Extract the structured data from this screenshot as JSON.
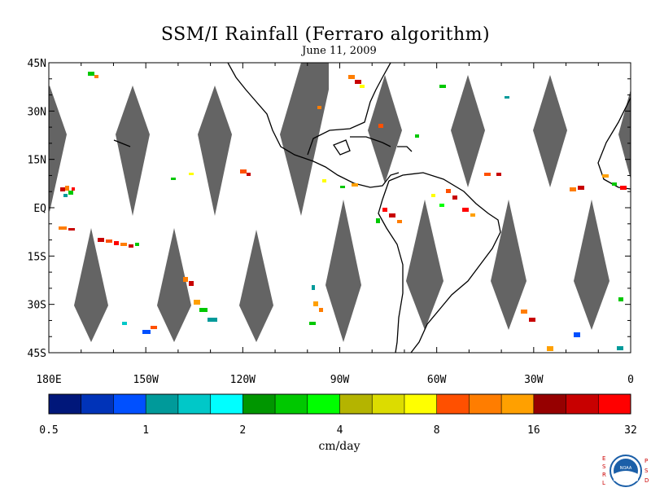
{
  "title": "SSM/I Rainfall (Ferraro algorithm)",
  "subtitle": "June 11, 2009",
  "map": {
    "lon_range": [
      180,
      360
    ],
    "lat_range": [
      -45,
      45
    ],
    "lat_labels": [
      "45N",
      "30N",
      "15N",
      "EQ",
      "15S",
      "30S",
      "45S"
    ],
    "lat_values": [
      45,
      30,
      15,
      0,
      -15,
      -30,
      -45
    ],
    "lon_labels": [
      "180E",
      "150W",
      "120W",
      "90W",
      "60W",
      "30W",
      "0"
    ],
    "lon_values": [
      180,
      210,
      240,
      270,
      300,
      330,
      360
    ],
    "swath_gap_color": "#646464",
    "land_outline_color": "#000000"
  },
  "colorbar": {
    "unit": "cm/day",
    "tick_labels": [
      "0.5",
      "1",
      "2",
      "4",
      "8",
      "16",
      "32"
    ],
    "colors": [
      "#00177a",
      "#0033b8",
      "#0050ff",
      "#009a9a",
      "#00c8c8",
      "#00ffff",
      "#009600",
      "#00c800",
      "#00ff00",
      "#b4b400",
      "#dcdc00",
      "#ffff00",
      "#ff5000",
      "#ff7d00",
      "#ffa000",
      "#960000",
      "#c80000",
      "#ff0000"
    ]
  },
  "logo": {
    "left_text": "ESRL",
    "right_text": "PSD",
    "center_text": "NOAA"
  }
}
